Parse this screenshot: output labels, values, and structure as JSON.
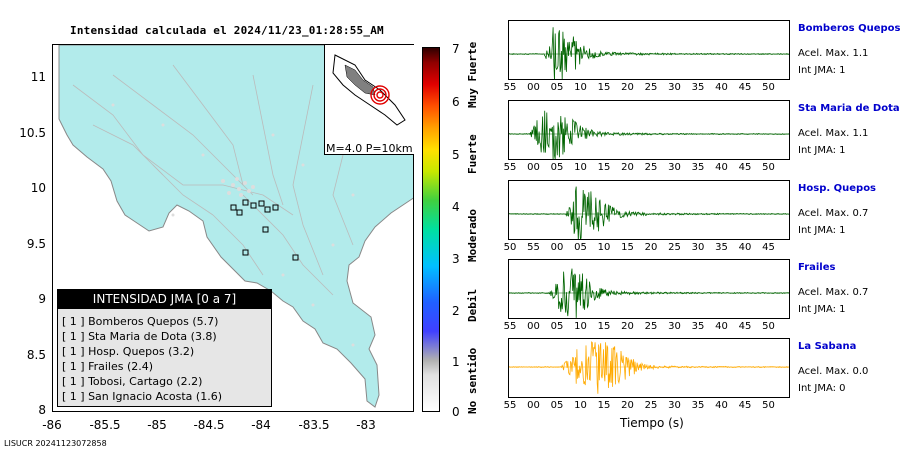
{
  "title": "Intensidad calculada el 2024/11/23_01:28:55_AM",
  "map": {
    "y_ticks": [
      "11",
      "10.5",
      "10",
      "9.5",
      "9",
      "8.5",
      "8"
    ],
    "x_ticks": [
      "-86",
      "-85.5",
      "-85",
      "-84.5",
      "-84",
      "-83.5",
      "-83"
    ],
    "land_color": "#b2ebeb",
    "inset_caption": "M=4.0 P=10km"
  },
  "legend": {
    "title": "INTENSIDAD JMA [0 a 7]",
    "rows": [
      "[ 1 ]  Bomberos Quepos (5.7)",
      "[ 1 ]  Sta Maria de Dota (3.8)",
      "[ 1 ]  Hosp. Quepos (3.2)",
      "[ 1 ]  Frailes (2.4)",
      "[ 1 ]  Tobosi, Cartago (2.2)",
      "[ 1 ]  San Ignacio Acosta (1.6)"
    ]
  },
  "colorbar": {
    "numbers": [
      "7",
      "6",
      "5",
      "4",
      "3",
      "2",
      "1",
      "0"
    ],
    "labels": [
      "Muy Fuerte",
      "Fuerte",
      "Moderado",
      "Debil",
      "No sentido"
    ]
  },
  "footer": "LISUCR 20241123072858",
  "waveforms": {
    "x_label": "Tiempo (s)",
    "stations": [
      {
        "name": "Bomberos Quepos",
        "acc": "Acel. Max. 1.1",
        "int": "Int JMA: 1",
        "color": "#006400",
        "ticks": [
          "55",
          "00",
          "05",
          "10",
          "15",
          "20",
          "25",
          "30",
          "35",
          "40",
          "45",
          "50"
        ]
      },
      {
        "name": "Sta Maria de Dota",
        "acc": "Acel. Max. 1.1",
        "int": "Int JMA: 1",
        "color": "#006400",
        "ticks": [
          "55",
          "00",
          "05",
          "10",
          "15",
          "20",
          "25",
          "30",
          "35",
          "40",
          "45",
          "50"
        ]
      },
      {
        "name": "Hosp. Quepos",
        "acc": "Acel. Max. 0.7",
        "int": "Int JMA: 1",
        "color": "#006400",
        "ticks": [
          "50",
          "55",
          "00",
          "05",
          "10",
          "15",
          "20",
          "25",
          "30",
          "35",
          "40",
          "45"
        ]
      },
      {
        "name": "Frailes",
        "acc": "Acel. Max. 0.7",
        "int": "Int JMA: 1",
        "color": "#006400",
        "ticks": [
          "55",
          "00",
          "05",
          "10",
          "15",
          "20",
          "25",
          "30",
          "35",
          "40",
          "45",
          "50"
        ]
      },
      {
        "name": "La Sabana",
        "acc": "Acel. Max. 0.0",
        "int": "Int JMA: 0",
        "color": "#ffaa00",
        "ticks": [
          "55",
          "00",
          "05",
          "10",
          "15",
          "20",
          "25",
          "30",
          "35",
          "40",
          "45",
          "50"
        ]
      }
    ]
  }
}
